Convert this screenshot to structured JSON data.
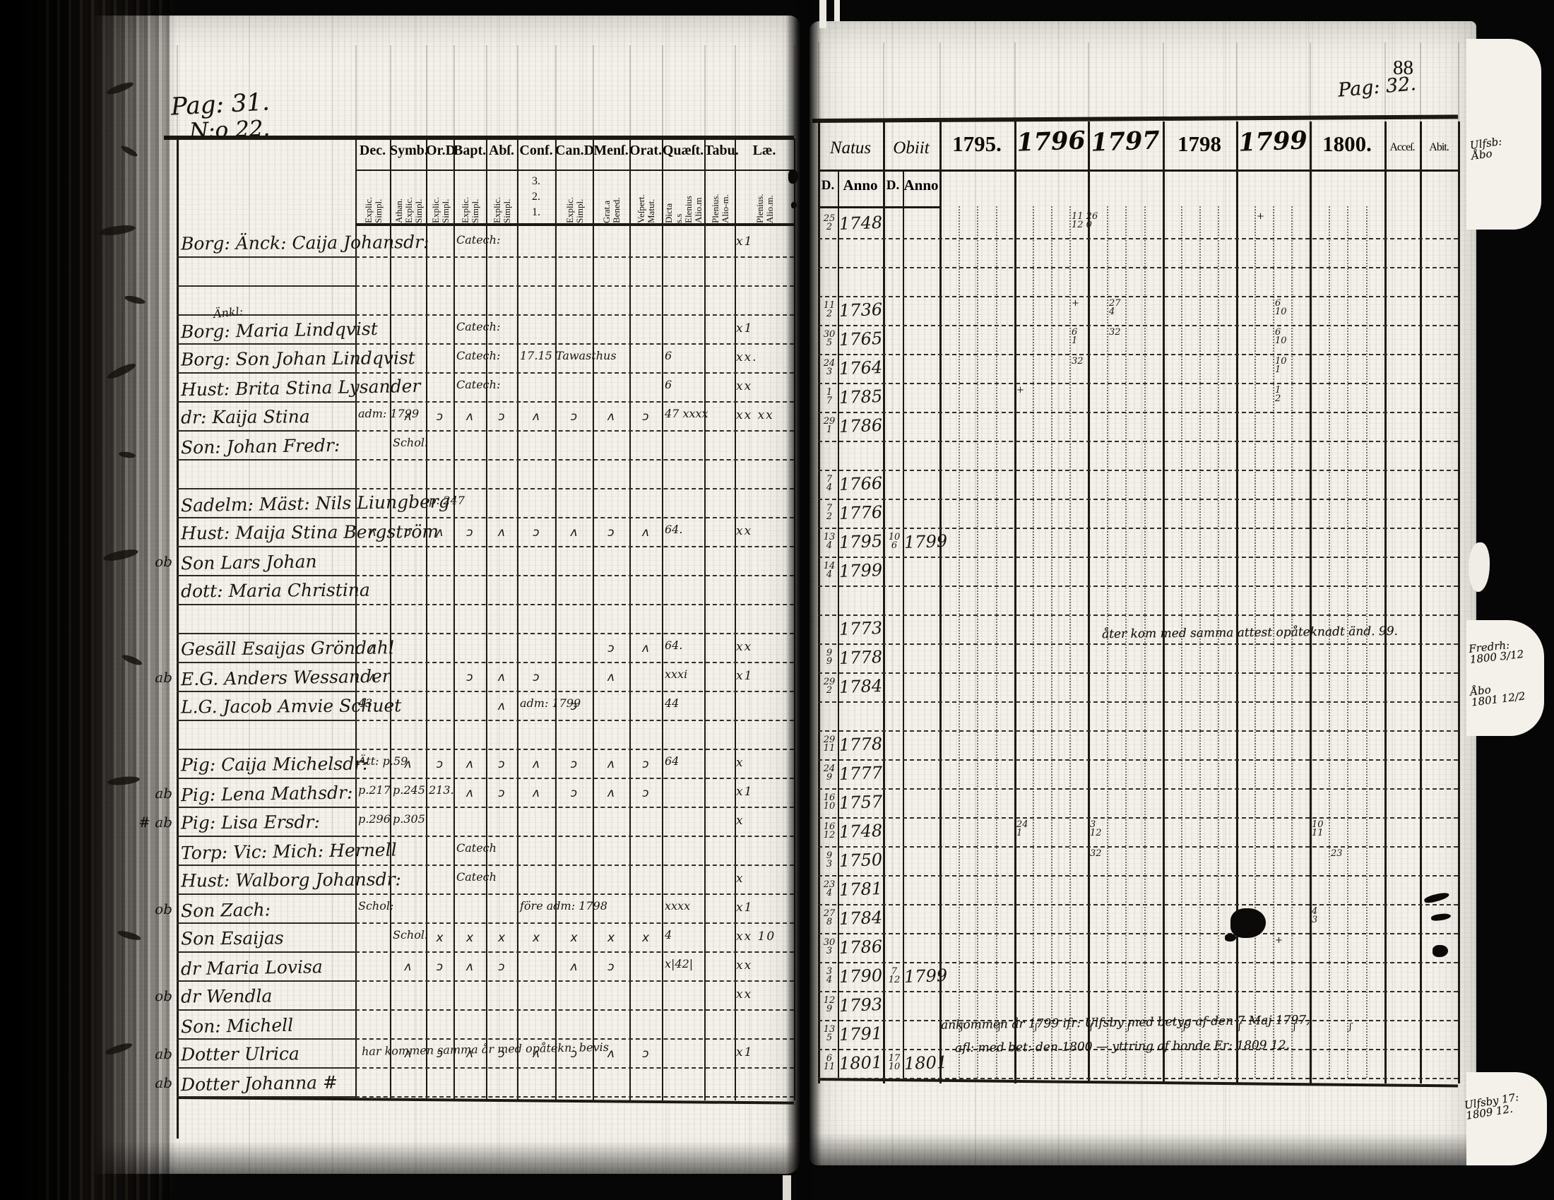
{
  "document": {
    "left_page": {
      "page_label": "Pag: 31.",
      "entry_label": "N:o 22.",
      "columns": [
        {
          "key": "dec",
          "abbr": "Dec.",
          "sub": "Explic. Simpl."
        },
        {
          "key": "symb",
          "abbr": "Symb.",
          "sub": "Athan. Explic. Simpl."
        },
        {
          "key": "ord",
          "abbr": "Or.D",
          "sub": "Explic. Simpl."
        },
        {
          "key": "bapt",
          "abbr": "Bapt.",
          "sub": "Explic. Simpl."
        },
        {
          "key": "abs",
          "abbr": "Abſ.",
          "sub": "Explic. Simpl."
        },
        {
          "key": "conf",
          "abbr": "Conf.",
          "sub": "3. 2. 1."
        },
        {
          "key": "cand",
          "abbr": "Can.D",
          "sub": "Explic. Simpl."
        },
        {
          "key": "mens",
          "abbr": "Menſ.",
          "sub": "Grat.a Bened."
        },
        {
          "key": "orat",
          "abbr": "Orat.",
          "sub": "Veſpert. Matut."
        },
        {
          "key": "quaest",
          "abbr": "Quæſt.",
          "sub": "Dicta s.s Elenius Alio.m"
        },
        {
          "key": "tab",
          "abbr": "Tabu.",
          "sub": "Plenius. Alio-m."
        },
        {
          "key": "lect",
          "abbr": "Læ.",
          "sub": "Plenius. Alio.m."
        }
      ]
    },
    "right_page": {
      "frame_number": "88",
      "page_label": "Pag: 32.",
      "natus_header": "Natus",
      "obiit_header": "Obiit",
      "d_label": "D.",
      "anno_label": "Anno",
      "years": [
        "1795.",
        "1796",
        "1797",
        "1798",
        "1799",
        "1800."
      ],
      "handwritten_years": [
        1,
        2,
        4
      ],
      "acce_header": "Acceſ.",
      "abit_header": "Abit.",
      "mid_note": "åter kom med samma attest opåteknadt änd. 99.",
      "bottom_note_1": "ankommen år 1799 ifr: Ulfsby med betyg af den 7 Maj 1797,",
      "bottom_note_2": "afl: med bet: den 1800 — yttring af bonde Er: 1809 12.",
      "corner_note_top": "Ulfsb:\nÅbo",
      "corner_note_mid": "Fredrh:\n1800 3/12",
      "corner_note_mid2": "Åbo\n1801 12/2",
      "corner_note_bottom": "Ulfsby 17:\n1809 12."
    },
    "rows": [
      {
        "name": "Borg: Änck: Caija Johansdr:",
        "exam": [
          {
            "col": "bapt",
            "text": "Catech:"
          }
        ],
        "lect": "x1",
        "natus_d": "25/2",
        "natus_y": "1748",
        "ym": [
          {
            "y": 1,
            "s": 3,
            "t": "11 26\n12 0"
          },
          {
            "y": 4,
            "s": 1,
            "t": "+"
          }
        ]
      },
      {},
      {},
      {
        "name": "Borg: Maria Lindqvist",
        "sup": "Änkl:",
        "exam": [
          {
            "col": "bapt",
            "text": "Catech:"
          }
        ],
        "lect": "x1",
        "natus_d": "11/2",
        "natus_y": "1736",
        "ym": [
          {
            "y": 1,
            "s": 3,
            "t": "+"
          },
          {
            "y": 2,
            "s": 1,
            "t": "27\n4"
          },
          {
            "y": 4,
            "s": 2,
            "t": "6\n10"
          }
        ]
      },
      {
        "name": "Borg: Son Johan Lindqvist",
        "exam": [
          {
            "col": "bapt",
            "text": "Catech:"
          },
          {
            "col": "conf",
            "text": "17.15 Tawasthus"
          },
          {
            "col": "quaest",
            "text": "6"
          }
        ],
        "lect": "xx.",
        "natus_d": "30/5",
        "natus_y": "1765",
        "ym": [
          {
            "y": 1,
            "s": 3,
            "t": "6\n1"
          },
          {
            "y": 2,
            "s": 1,
            "t": "32"
          },
          {
            "y": 4,
            "s": 2,
            "t": "6\n10"
          }
        ]
      },
      {
        "name": "Hust: Brita Stina Lysander",
        "exam": [
          {
            "col": "bapt",
            "text": "Catech:"
          },
          {
            "col": "quaest",
            "text": "6"
          }
        ],
        "lect": "xx",
        "natus_d": "24/3",
        "natus_y": "1764",
        "ym": [
          {
            "y": 1,
            "s": 3,
            "t": "32"
          },
          {
            "y": 4,
            "s": 2,
            "t": "10\n1"
          }
        ]
      },
      {
        "name": "dr: Kaija Stina",
        "exam": [
          {
            "col": "dec",
            "text": "adm: 1799"
          },
          {
            "col": "quaest",
            "text": "47 xxxx"
          }
        ],
        "ticks": [
          "symb",
          "ord",
          "bapt",
          "abs",
          "conf",
          "cand",
          "mens",
          "orat"
        ],
        "lect": "xx xx",
        "natus_d": "1/7",
        "natus_y": "1785",
        "ym": [
          {
            "y": 1,
            "s": 0,
            "t": "+"
          },
          {
            "y": 4,
            "s": 2,
            "t": "1\n2"
          }
        ]
      },
      {
        "name": "Son: Johan Fredr:",
        "exam": [
          {
            "col": "symb",
            "text": "Schol:"
          }
        ],
        "natus_d": "29/1",
        "natus_y": "1786"
      },
      {},
      {
        "name": "Sadelm: Mäst: Nils Liungberg",
        "exam": [
          {
            "col": "ord",
            "text": "p. 247"
          }
        ],
        "natus_d": "7/4",
        "natus_y": "1766"
      },
      {
        "name": "Hust: Maija Stina Bergström",
        "exam": [
          {
            "col": "quaest",
            "text": "64."
          }
        ],
        "ticks": [
          "dec",
          "symb",
          "ord",
          "bapt",
          "abs",
          "conf",
          "cand",
          "mens",
          "orat"
        ],
        "lect": "xx",
        "natus_d": "7/2",
        "natus_y": "1776"
      },
      {
        "margin": "ob",
        "name": "Son Lars Johan",
        "natus_d": "13/4",
        "natus_y": "1795",
        "obiit_d": "10/6",
        "obiit_y": "1799"
      },
      {
        "name": "dott: Maria Christina",
        "natus_d": "14/4",
        "natus_y": "1799"
      },
      {},
      {
        "name": "Gesäll Esaijas Gröndahl",
        "exam": [
          {
            "col": "quaest",
            "text": "64."
          }
        ],
        "ticks": [
          "dec",
          "mens",
          "orat"
        ],
        "lect": "xx",
        "natus_d": "",
        "natus_y": "1773"
      },
      {
        "margin": "ab",
        "name": "E.G. Anders Wessander",
        "exam": [
          {
            "col": "quaest",
            "text": "xxxi"
          }
        ],
        "ticks": [
          "dec",
          "bapt",
          "abs",
          "conf",
          "mens"
        ],
        "lect": "x1",
        "natus_d": "9/9",
        "natus_y": "1778"
      },
      {
        "name": "L.G. Jacob Amvie Schuet",
        "exam": [
          {
            "col": "dec",
            "text": "43"
          },
          {
            "col": "conf",
            "text": "adm: 1799"
          },
          {
            "col": "quaest",
            "text": "44"
          }
        ],
        "ticks": [
          "abs",
          "cand"
        ],
        "natus_d": "29/2",
        "natus_y": "1784"
      },
      {},
      {
        "name": "Pig: Caija Michelsdr:",
        "exam": [
          {
            "col": "dec",
            "text": "Ätt: p.59"
          },
          {
            "col": "quaest",
            "text": "64"
          }
        ],
        "ticks": [
          "symb",
          "ord",
          "bapt",
          "abs",
          "conf",
          "cand",
          "mens",
          "orat"
        ],
        "lect": "x",
        "natus_d": "29/11",
        "natus_y": "1778"
      },
      {
        "margin": "ab",
        "name": "Pig: Lena Mathsdr:",
        "exam": [
          {
            "col": "dec",
            "text": "p.217"
          },
          {
            "col": "symb",
            "text": "p.245"
          },
          {
            "col": "ord",
            "text": "213."
          }
        ],
        "ticks": [
          "bapt",
          "abs",
          "conf",
          "cand",
          "mens",
          "orat"
        ],
        "lect": "x1",
        "natus_d": "24/9",
        "natus_y": "1777"
      },
      {
        "margin": "# ab",
        "name": "Pig: Lisa Ersdr:",
        "exam": [
          {
            "col": "dec",
            "text": "p.296"
          },
          {
            "col": "symb",
            "text": "p.305"
          }
        ],
        "lect": "x",
        "natus_d": "16/10",
        "natus_y": "1757"
      },
      {
        "name": "Torp: Vic: Mich: Hernell",
        "exam": [
          {
            "col": "bapt",
            "text": "Catech"
          }
        ],
        "natus_d": "16/12",
        "natus_y": "1748",
        "ym": [
          {
            "y": 1,
            "s": 0,
            "t": "24\n1"
          },
          {
            "y": 2,
            "s": 0,
            "t": "3\n12"
          },
          {
            "y": 5,
            "s": 0,
            "t": "10\n11"
          }
        ]
      },
      {
        "name": "Hust: Walborg Johansdr:",
        "exam": [
          {
            "col": "bapt",
            "text": "Catech"
          }
        ],
        "lect": "x",
        "natus_d": "9/3",
        "natus_y": "1750",
        "ym": [
          {
            "y": 2,
            "s": 0,
            "t": "32"
          },
          {
            "y": 5,
            "s": 1,
            "t": "23"
          }
        ]
      },
      {
        "margin": "ob",
        "name": "Son Zach:",
        "exam": [
          {
            "col": "dec",
            "text": "Schol:"
          },
          {
            "col": "conf",
            "text": "före adm: 1798"
          },
          {
            "col": "quaest",
            "text": "xxxx"
          }
        ],
        "lect": "x1",
        "natus_d": "23/4",
        "natus_y": "1781"
      },
      {
        "name": "Son Esaijas",
        "exam": [
          {
            "col": "symb",
            "text": "Schol:"
          },
          {
            "col": "quaest",
            "text": "4"
          }
        ],
        "ticks": [
          "ord",
          "bapt",
          "abs",
          "conf",
          "cand",
          "mens",
          "orat"
        ],
        "tick_char": "x",
        "lect": "xx 10",
        "natus_d": "27/8",
        "natus_y": "1784",
        "ym": [
          {
            "y": 5,
            "s": 0,
            "t": "4\n3"
          }
        ]
      },
      {
        "name": "dr Maria Lovisa",
        "exam": [
          {
            "col": "quaest",
            "text": "x|42|"
          }
        ],
        "ticks": [
          "symb",
          "ord",
          "bapt",
          "abs",
          "cand",
          "mens"
        ],
        "lect": "xx",
        "natus_d": "30/3",
        "natus_y": "1786",
        "ym": [
          {
            "y": 4,
            "s": 2,
            "t": "+"
          }
        ]
      },
      {
        "margin": "ob",
        "name": "dr Wendla",
        "lect": "xx",
        "natus_d": "3/4",
        "natus_y": "1790",
        "obiit_d": "7/12",
        "obiit_y": "1799"
      },
      {
        "name": "Son: Michell",
        "natus_d": "12/9",
        "natus_y": "1793"
      },
      {
        "margin": "ab",
        "name": "Dotter Ulrica",
        "note": "har kommen samma år med opåtekn: bevis",
        "ticks": [
          "symb",
          "ord",
          "bapt",
          "abs",
          "conf",
          "cand",
          "mens",
          "orat"
        ],
        "lect": "x1",
        "natus_d": "13/5",
        "natus_y": "1791",
        "ym": [
          {
            "y": 0,
            "s": 1,
            "t": "ʃ"
          },
          {
            "y": 0,
            "s": 3,
            "t": "ʃ"
          },
          {
            "y": 1,
            "s": 1,
            "t": "ʃ"
          },
          {
            "y": 2,
            "s": 0,
            "t": "ʃ"
          },
          {
            "y": 2,
            "s": 2,
            "t": "ʃ"
          },
          {
            "y": 3,
            "s": 1,
            "t": "ʃ"
          },
          {
            "y": 4,
            "s": 0,
            "t": "ʃ"
          },
          {
            "y": 4,
            "s": 3,
            "t": "ʃ"
          },
          {
            "y": 5,
            "s": 2,
            "t": "ʃ"
          }
        ]
      },
      {
        "margin": "ab",
        "name": "Dotter Johanna #",
        "natus_d": "6/11",
        "natus_y": "1801",
        "obiit_d": "17/10",
        "obiit_y": "1801"
      }
    ]
  }
}
